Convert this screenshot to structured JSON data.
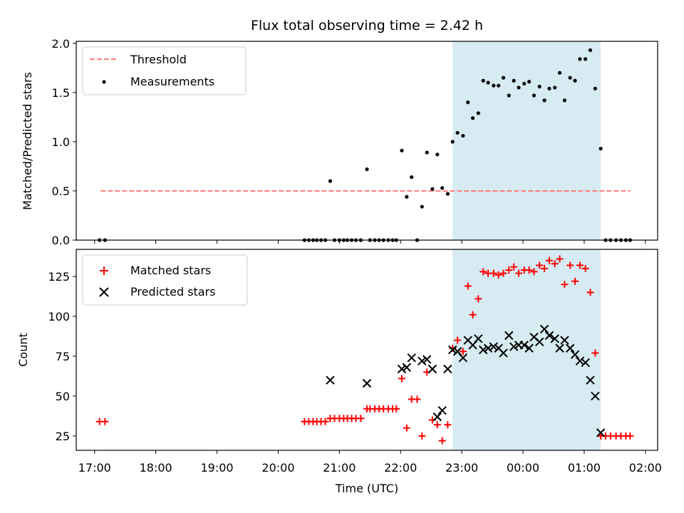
{
  "chart_data": {
    "type": "scatter",
    "title": "Flux total observing time = 2.42 h",
    "xlabel": "Time (UTC)",
    "xticks": [
      "17:00",
      "18:00",
      "19:00",
      "20:00",
      "21:00",
      "22:00",
      "23:00",
      "00:00",
      "01:00",
      "02:00"
    ],
    "xlim_hours": [
      16.7,
      26.2
    ],
    "shaded_span_hours": [
      22.85,
      25.27
    ],
    "shade_color": "#add8e6",
    "top": {
      "ylabel": "Matched/Predicted stars",
      "ylim": [
        0,
        2.02
      ],
      "yticks": [
        "0.0",
        "0.5",
        "1.0",
        "1.5",
        "2.0"
      ],
      "ytick_values": [
        0,
        0.5,
        1.0,
        1.5,
        2.0
      ],
      "legend": {
        "placement": "upper-left",
        "threshold_label": "Threshold",
        "measurements_label": "Measurements"
      },
      "threshold": {
        "value": 0.5,
        "x_start": 17.1,
        "x_end": 25.75,
        "color": "#ff7f7f"
      },
      "measurements": [
        [
          17.08,
          0
        ],
        [
          17.17,
          0
        ],
        [
          20.43,
          0
        ],
        [
          20.5,
          0
        ],
        [
          20.57,
          0
        ],
        [
          20.63,
          0
        ],
        [
          20.7,
          0
        ],
        [
          20.77,
          0
        ],
        [
          20.85,
          0.6
        ],
        [
          20.92,
          0
        ],
        [
          21.0,
          0
        ],
        [
          21.07,
          0
        ],
        [
          21.13,
          0
        ],
        [
          21.2,
          0
        ],
        [
          21.27,
          0
        ],
        [
          21.35,
          0
        ],
        [
          21.45,
          0.72
        ],
        [
          21.5,
          0
        ],
        [
          21.58,
          0
        ],
        [
          21.65,
          0
        ],
        [
          21.72,
          0
        ],
        [
          21.8,
          0
        ],
        [
          21.87,
          0
        ],
        [
          21.93,
          0
        ],
        [
          22.02,
          0.91
        ],
        [
          22.1,
          0.44
        ],
        [
          22.18,
          0.64
        ],
        [
          22.27,
          0
        ],
        [
          22.35,
          0.34
        ],
        [
          22.43,
          0.89
        ],
        [
          22.52,
          0.52
        ],
        [
          22.6,
          0.87
        ],
        [
          22.68,
          0.53
        ],
        [
          22.77,
          0.47
        ],
        [
          22.85,
          1.0
        ],
        [
          22.93,
          1.09
        ],
        [
          23.02,
          1.06
        ],
        [
          23.1,
          1.4
        ],
        [
          23.18,
          1.24
        ],
        [
          23.27,
          1.29
        ],
        [
          23.35,
          1.62
        ],
        [
          23.43,
          1.6
        ],
        [
          23.52,
          1.57
        ],
        [
          23.6,
          1.57
        ],
        [
          23.68,
          1.65
        ],
        [
          23.77,
          1.47
        ],
        [
          23.85,
          1.62
        ],
        [
          23.93,
          1.55
        ],
        [
          24.02,
          1.59
        ],
        [
          24.1,
          1.61
        ],
        [
          24.18,
          1.47
        ],
        [
          24.27,
          1.56
        ],
        [
          24.35,
          1.42
        ],
        [
          24.43,
          1.54
        ],
        [
          24.52,
          1.55
        ],
        [
          24.6,
          1.7
        ],
        [
          24.68,
          1.42
        ],
        [
          24.77,
          1.65
        ],
        [
          24.85,
          1.62
        ],
        [
          24.93,
          1.84
        ],
        [
          25.02,
          1.84
        ],
        [
          25.1,
          1.93
        ],
        [
          25.18,
          1.54
        ],
        [
          25.27,
          0.93
        ],
        [
          25.35,
          0
        ],
        [
          25.43,
          0
        ],
        [
          25.52,
          0
        ],
        [
          25.6,
          0
        ],
        [
          25.68,
          0
        ],
        [
          25.75,
          0
        ]
      ]
    },
    "bottom": {
      "ylabel": "Count",
      "ylim": [
        16,
        142
      ],
      "yticks": [
        "25",
        "50",
        "75",
        "100",
        "125"
      ],
      "ytick_values": [
        25,
        50,
        75,
        100,
        125
      ],
      "legend": {
        "placement": "upper-left",
        "matched_label": "Matched stars",
        "predicted_label": "Predicted stars"
      },
      "matched_color": "#ff0000",
      "predicted_color": "#000000",
      "matched": [
        [
          17.08,
          34
        ],
        [
          17.17,
          34
        ],
        [
          20.43,
          34
        ],
        [
          20.5,
          34
        ],
        [
          20.57,
          34
        ],
        [
          20.63,
          34
        ],
        [
          20.7,
          34
        ],
        [
          20.77,
          34
        ],
        [
          20.85,
          36
        ],
        [
          20.92,
          36
        ],
        [
          21.0,
          36
        ],
        [
          21.07,
          36
        ],
        [
          21.13,
          36
        ],
        [
          21.2,
          36
        ],
        [
          21.27,
          36
        ],
        [
          21.35,
          36
        ],
        [
          21.45,
          42
        ],
        [
          21.5,
          42
        ],
        [
          21.58,
          42
        ],
        [
          21.65,
          42
        ],
        [
          21.72,
          42
        ],
        [
          21.8,
          42
        ],
        [
          21.87,
          42
        ],
        [
          21.93,
          42
        ],
        [
          22.02,
          61
        ],
        [
          22.1,
          30
        ],
        [
          22.18,
          48
        ],
        [
          22.27,
          48
        ],
        [
          22.35,
          25
        ],
        [
          22.43,
          65
        ],
        [
          22.52,
          35
        ],
        [
          22.6,
          32
        ],
        [
          22.68,
          22
        ],
        [
          22.77,
          32
        ],
        [
          22.85,
          80
        ],
        [
          22.93,
          85
        ],
        [
          23.02,
          78
        ],
        [
          23.1,
          119
        ],
        [
          23.18,
          101
        ],
        [
          23.27,
          111
        ],
        [
          23.35,
          128
        ],
        [
          23.43,
          127
        ],
        [
          23.52,
          127
        ],
        [
          23.6,
          126
        ],
        [
          23.68,
          127
        ],
        [
          23.77,
          129
        ],
        [
          23.85,
          131
        ],
        [
          23.93,
          127
        ],
        [
          24.02,
          129
        ],
        [
          24.1,
          129
        ],
        [
          24.18,
          128
        ],
        [
          24.27,
          132
        ],
        [
          24.35,
          130
        ],
        [
          24.43,
          135
        ],
        [
          24.52,
          133
        ],
        [
          24.6,
          136
        ],
        [
          24.68,
          120
        ],
        [
          24.77,
          132
        ],
        [
          24.85,
          122
        ],
        [
          24.93,
          132
        ],
        [
          25.02,
          130
        ],
        [
          25.1,
          115
        ],
        [
          25.18,
          77
        ],
        [
          25.27,
          25
        ],
        [
          25.35,
          25
        ],
        [
          25.43,
          25
        ],
        [
          25.52,
          25
        ],
        [
          25.6,
          25
        ],
        [
          25.68,
          25
        ],
        [
          25.75,
          25
        ]
      ],
      "predicted": [
        [
          20.85,
          60
        ],
        [
          21.45,
          58
        ],
        [
          22.02,
          67
        ],
        [
          22.1,
          68
        ],
        [
          22.18,
          74
        ],
        [
          22.35,
          72
        ],
        [
          22.43,
          73
        ],
        [
          22.52,
          67
        ],
        [
          22.6,
          37
        ],
        [
          22.68,
          41
        ],
        [
          22.77,
          67
        ],
        [
          22.85,
          79
        ],
        [
          22.93,
          78
        ],
        [
          23.02,
          74
        ],
        [
          23.1,
          85
        ],
        [
          23.18,
          82
        ],
        [
          23.27,
          86
        ],
        [
          23.35,
          79
        ],
        [
          23.43,
          80
        ],
        [
          23.52,
          81
        ],
        [
          23.6,
          80
        ],
        [
          23.68,
          77
        ],
        [
          23.77,
          88
        ],
        [
          23.85,
          81
        ],
        [
          23.93,
          82
        ],
        [
          24.02,
          82
        ],
        [
          24.1,
          80
        ],
        [
          24.18,
          87
        ],
        [
          24.27,
          84
        ],
        [
          24.35,
          92
        ],
        [
          24.43,
          88
        ],
        [
          24.52,
          86
        ],
        [
          24.6,
          80
        ],
        [
          24.68,
          85
        ],
        [
          24.77,
          80
        ],
        [
          24.85,
          76
        ],
        [
          24.93,
          72
        ],
        [
          25.02,
          71
        ],
        [
          25.1,
          60
        ],
        [
          25.18,
          50
        ],
        [
          25.27,
          27
        ]
      ]
    }
  }
}
